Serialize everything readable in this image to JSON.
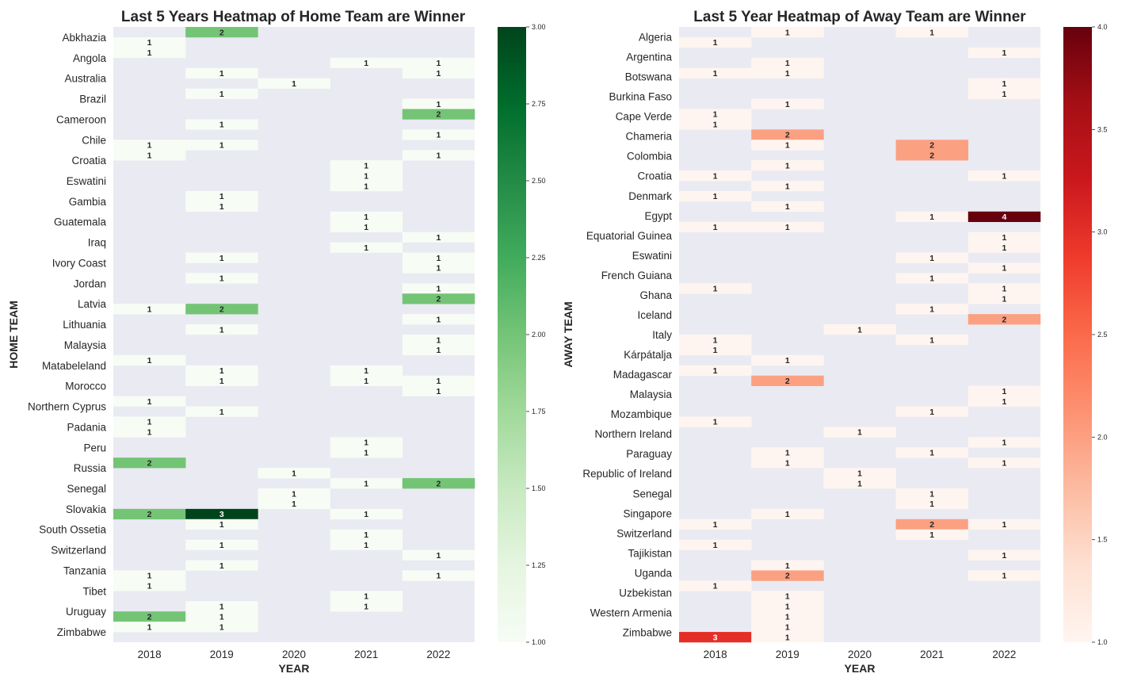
{
  "chart_data": [
    {
      "type": "heatmap",
      "title": "Last 5 Years Heatmap of Home Team are Winner",
      "xlabel": "YEAR",
      "ylabel": "HOME TEAM",
      "colormap": "Greens",
      "vmin": 1,
      "vmax": 3,
      "colorbar_ticks": [
        "1.00",
        "1.25",
        "1.50",
        "1.75",
        "2.00",
        "2.25",
        "2.50",
        "2.75",
        "3.00"
      ],
      "x": [
        "2018",
        "2019",
        "2020",
        "2021",
        "2022"
      ],
      "y_tick_labels": [
        "Abkhazia",
        "Angola",
        "Australia",
        "Brazil",
        "Cameroon",
        "Chile",
        "Croatia",
        "Eswatini",
        "Gambia",
        "Guatemala",
        "Iraq",
        "Ivory Coast",
        "Jordan",
        "Latvia",
        "Lithuania",
        "Malaysia",
        "Matabeleland",
        "Morocco",
        "Northern Cyprus",
        "Padania",
        "Peru",
        "Russia",
        "Senegal",
        "Slovakia",
        "South Ossetia",
        "Switzerland",
        "Tanzania",
        "Tibet",
        "Uruguay",
        "Zimbabwe"
      ],
      "rows": 60,
      "values": [
        [
          null,
          2,
          null,
          null,
          null
        ],
        [
          1,
          null,
          null,
          null,
          null
        ],
        [
          1,
          null,
          null,
          null,
          null
        ],
        [
          null,
          null,
          null,
          1,
          1
        ],
        [
          null,
          1,
          null,
          null,
          1
        ],
        [
          null,
          null,
          1,
          null,
          null
        ],
        [
          null,
          1,
          null,
          null,
          null
        ],
        [
          null,
          null,
          null,
          null,
          1
        ],
        [
          null,
          null,
          null,
          null,
          2
        ],
        [
          null,
          1,
          null,
          null,
          null
        ],
        [
          null,
          null,
          null,
          null,
          1
        ],
        [
          1,
          1,
          null,
          null,
          null
        ],
        [
          1,
          null,
          null,
          null,
          1
        ],
        [
          null,
          null,
          null,
          1,
          null
        ],
        [
          null,
          null,
          null,
          1,
          null
        ],
        [
          null,
          null,
          null,
          1,
          null
        ],
        [
          null,
          1,
          null,
          null,
          null
        ],
        [
          null,
          1,
          null,
          null,
          null
        ],
        [
          null,
          null,
          null,
          1,
          null
        ],
        [
          null,
          null,
          null,
          1,
          null
        ],
        [
          null,
          null,
          null,
          null,
          1
        ],
        [
          null,
          null,
          null,
          1,
          null
        ],
        [
          null,
          1,
          null,
          null,
          1
        ],
        [
          null,
          null,
          null,
          null,
          1
        ],
        [
          null,
          1,
          null,
          null,
          null
        ],
        [
          null,
          null,
          null,
          null,
          1
        ],
        [
          null,
          null,
          null,
          null,
          2
        ],
        [
          1,
          2,
          null,
          null,
          null
        ],
        [
          null,
          null,
          null,
          null,
          1
        ],
        [
          null,
          1,
          null,
          null,
          null
        ],
        [
          null,
          null,
          null,
          null,
          1
        ],
        [
          null,
          null,
          null,
          null,
          1
        ],
        [
          1,
          null,
          null,
          null,
          null
        ],
        [
          null,
          1,
          null,
          1,
          null
        ],
        [
          null,
          1,
          null,
          1,
          1
        ],
        [
          null,
          null,
          null,
          null,
          1
        ],
        [
          1,
          null,
          null,
          null,
          null
        ],
        [
          null,
          1,
          null,
          null,
          null
        ],
        [
          1,
          null,
          null,
          null,
          null
        ],
        [
          1,
          null,
          null,
          null,
          null
        ],
        [
          null,
          null,
          null,
          1,
          null
        ],
        [
          null,
          null,
          null,
          1,
          null
        ],
        [
          2,
          null,
          null,
          null,
          null
        ],
        [
          null,
          null,
          1,
          null,
          null
        ],
        [
          null,
          null,
          null,
          1,
          2
        ],
        [
          null,
          null,
          1,
          null,
          null
        ],
        [
          null,
          null,
          1,
          null,
          null
        ],
        [
          2,
          3,
          null,
          1,
          null
        ],
        [
          null,
          1,
          null,
          null,
          null
        ],
        [
          null,
          null,
          null,
          1,
          null
        ],
        [
          null,
          1,
          null,
          1,
          null
        ],
        [
          null,
          null,
          null,
          null,
          1
        ],
        [
          null,
          1,
          null,
          null,
          null
        ],
        [
          1,
          null,
          null,
          null,
          1
        ],
        [
          1,
          null,
          null,
          null,
          null
        ],
        [
          null,
          null,
          null,
          1,
          null
        ],
        [
          null,
          1,
          null,
          1,
          null
        ],
        [
          2,
          1,
          null,
          null,
          null
        ],
        [
          1,
          1,
          null,
          null,
          null
        ],
        [
          null,
          null,
          null,
          null,
          null
        ]
      ]
    },
    {
      "type": "heatmap",
      "title": "Last 5 Year Heatmap of Away Team are Winner",
      "xlabel": "YEAR",
      "ylabel": "AWAY TEAM",
      "colormap": "Reds",
      "vmin": 1,
      "vmax": 4,
      "colorbar_ticks": [
        "1.0",
        "1.5",
        "2.0",
        "2.5",
        "3.0",
        "3.5",
        "4.0"
      ],
      "x": [
        "2018",
        "2019",
        "2020",
        "2021",
        "2022"
      ],
      "y_tick_labels": [
        "Algeria",
        "Argentina",
        "Botswana",
        "Burkina Faso",
        "Cape Verde",
        "Chameria",
        "Colombia",
        "Croatia",
        "Denmark",
        "Egypt",
        "Equatorial Guinea",
        "Eswatini",
        "French Guiana",
        "Ghana",
        "Iceland",
        "Italy",
        "Kárpátalja",
        "Madagascar",
        "Malaysia",
        "Mozambique",
        "Northern Ireland",
        "Paraguay",
        "Republic of Ireland",
        "Senegal",
        "Singapore",
        "Switzerland",
        "Tajikistan",
        "Uganda",
        "Uzbekistan",
        "Western Armenia",
        "Zimbabwe"
      ],
      "rows": 60,
      "values": [
        [
          null,
          1,
          null,
          1,
          null
        ],
        [
          1,
          null,
          null,
          null,
          null
        ],
        [
          null,
          null,
          null,
          null,
          1
        ],
        [
          null,
          1,
          null,
          null,
          null
        ],
        [
          1,
          1,
          null,
          null,
          null
        ],
        [
          null,
          null,
          null,
          null,
          1
        ],
        [
          null,
          null,
          null,
          null,
          1
        ],
        [
          null,
          1,
          null,
          null,
          null
        ],
        [
          1,
          null,
          null,
          null,
          null
        ],
        [
          1,
          null,
          null,
          null,
          null
        ],
        [
          null,
          2,
          null,
          null,
          null
        ],
        [
          null,
          1,
          null,
          2,
          null
        ],
        [
          null,
          null,
          null,
          2,
          null
        ],
        [
          null,
          1,
          null,
          null,
          null
        ],
        [
          1,
          null,
          null,
          null,
          1
        ],
        [
          null,
          1,
          null,
          null,
          null
        ],
        [
          1,
          null,
          null,
          null,
          null
        ],
        [
          null,
          1,
          null,
          null,
          null
        ],
        [
          null,
          null,
          null,
          1,
          4
        ],
        [
          1,
          1,
          null,
          null,
          null
        ],
        [
          null,
          null,
          null,
          null,
          1
        ],
        [
          null,
          null,
          null,
          null,
          1
        ],
        [
          null,
          null,
          null,
          1,
          null
        ],
        [
          null,
          null,
          null,
          null,
          1
        ],
        [
          null,
          null,
          null,
          1,
          null
        ],
        [
          1,
          null,
          null,
          null,
          1
        ],
        [
          null,
          null,
          null,
          null,
          1
        ],
        [
          null,
          null,
          null,
          1,
          null
        ],
        [
          null,
          null,
          null,
          null,
          2
        ],
        [
          null,
          null,
          1,
          null,
          null
        ],
        [
          1,
          null,
          null,
          1,
          null
        ],
        [
          1,
          null,
          null,
          null,
          null
        ],
        [
          null,
          1,
          null,
          null,
          null
        ],
        [
          1,
          null,
          null,
          null,
          null
        ],
        [
          null,
          2,
          null,
          null,
          null
        ],
        [
          null,
          null,
          null,
          null,
          1
        ],
        [
          null,
          null,
          null,
          null,
          1
        ],
        [
          null,
          null,
          null,
          1,
          null
        ],
        [
          1,
          null,
          null,
          null,
          null
        ],
        [
          null,
          null,
          1,
          null,
          null
        ],
        [
          null,
          null,
          null,
          null,
          1
        ],
        [
          null,
          1,
          null,
          1,
          null
        ],
        [
          null,
          1,
          null,
          null,
          1
        ],
        [
          null,
          null,
          1,
          null,
          null
        ],
        [
          null,
          null,
          1,
          null,
          null
        ],
        [
          null,
          null,
          null,
          1,
          null
        ],
        [
          null,
          null,
          null,
          1,
          null
        ],
        [
          null,
          1,
          null,
          null,
          null
        ],
        [
          1,
          null,
          null,
          2,
          1
        ],
        [
          null,
          null,
          null,
          1,
          null
        ],
        [
          1,
          null,
          null,
          null,
          null
        ],
        [
          null,
          null,
          null,
          null,
          1
        ],
        [
          null,
          1,
          null,
          null,
          null
        ],
        [
          null,
          2,
          null,
          null,
          1
        ],
        [
          1,
          null,
          null,
          null,
          null
        ],
        [
          null,
          1,
          null,
          null,
          null
        ],
        [
          null,
          1,
          null,
          null,
          null
        ],
        [
          null,
          1,
          null,
          null,
          null
        ],
        [
          null,
          1,
          null,
          null,
          null
        ],
        [
          3,
          1,
          null,
          null,
          null
        ]
      ]
    }
  ]
}
